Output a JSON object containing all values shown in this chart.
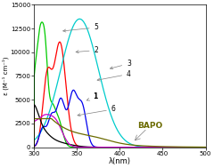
{
  "title": "",
  "xlabel": "λ(nm)",
  "ylabel": "ε (M⁻¹ cm⁻¹)",
  "xlim": [
    300,
    500
  ],
  "ylim": [
    0,
    15000
  ],
  "yticks": [
    0,
    2500,
    5000,
    7500,
    10000,
    12500,
    15000
  ],
  "xticks": [
    300,
    350,
    400,
    450,
    500
  ],
  "background_color": "#ffffff",
  "bapo_color": "#6B6B00",
  "curves": [
    {
      "id": 1,
      "color": "#000000"
    },
    {
      "id": 2,
      "color": "#FF0000"
    },
    {
      "id": 3,
      "color": "#00CCCC"
    },
    {
      "id": 4,
      "color": "#0000EE"
    },
    {
      "id": 5,
      "color": "#00CC00"
    },
    {
      "id": 6,
      "color": "#CC00CC"
    },
    {
      "id": 7,
      "color": "#6B6B00"
    }
  ]
}
